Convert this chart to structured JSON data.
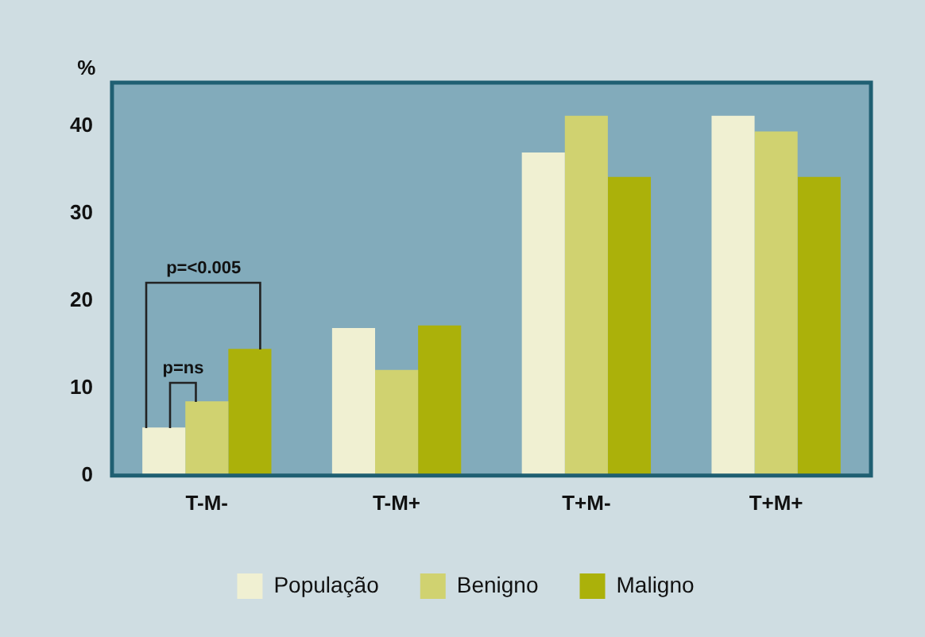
{
  "chart_data": {
    "type": "bar",
    "ylabel": "%",
    "categories": [
      "T-M-",
      "T-M+",
      "T+M-",
      "T+M+"
    ],
    "series": [
      {
        "name": "População",
        "color": "#f0f0d2",
        "values": [
          5.5,
          16.9,
          37.0,
          41.2
        ]
      },
      {
        "name": "Benigno",
        "color": "#d0d270",
        "values": [
          8.5,
          12.1,
          41.2,
          39.4
        ]
      },
      {
        "name": "Maligno",
        "color": "#abb10a",
        "values": [
          14.5,
          17.2,
          34.2,
          34.2
        ]
      }
    ],
    "ylim": [
      0,
      45
    ],
    "yticks": [
      0,
      10,
      20,
      30,
      40
    ],
    "grid": false,
    "legend": "bottom",
    "annotations": [
      "p=ns",
      "p=<0.005"
    ]
  }
}
